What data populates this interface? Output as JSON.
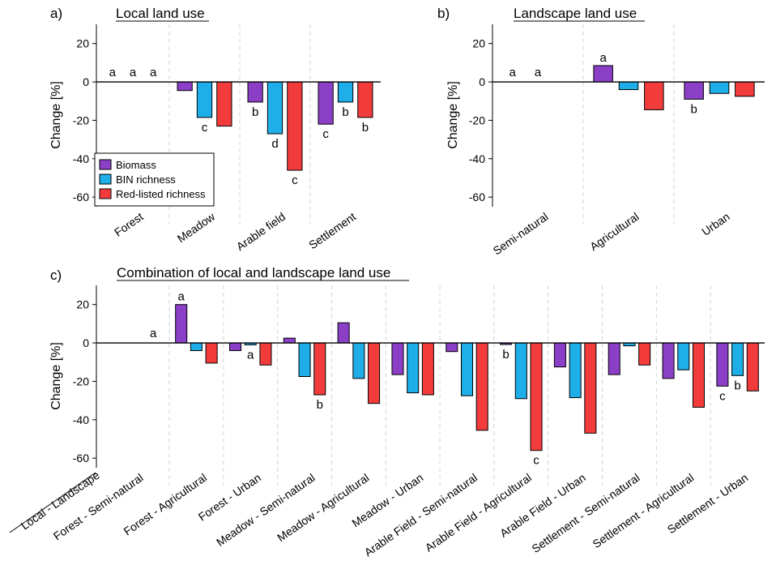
{
  "colors": {
    "biomass": "#8b3fc6",
    "bin": "#1eaee8",
    "red": "#f23c3c"
  },
  "legend": {
    "items": [
      "Biomass",
      "BIN richness",
      "Red-listed richness"
    ]
  },
  "bottom_label": "Local - Landscape",
  "chart_data": [
    {
      "panel": "a)",
      "title": "Local land use",
      "type": "bar",
      "ylabel": "Change [%]",
      "ylim": [
        -65,
        30
      ],
      "yticks": [
        20,
        0,
        -20,
        -40,
        -60
      ],
      "categories": [
        "Forest",
        "Meadow",
        "Arable field",
        "Settlement"
      ],
      "series": [
        {
          "name": "Biomass",
          "values": [
            0,
            -4.5,
            -10.5,
            -22
          ]
        },
        {
          "name": "BIN richness",
          "values": [
            0,
            -18.5,
            -27,
            -10.5
          ]
        },
        {
          "name": "Red-listed richness",
          "values": [
            0,
            -23,
            -46,
            -18.5
          ]
        }
      ],
      "letters": [
        [
          "a",
          "a",
          "a"
        ],
        [
          "",
          "c",
          ""
        ],
        [
          "b",
          "d",
          "c"
        ],
        [
          "c",
          "b",
          "b"
        ]
      ]
    },
    {
      "panel": "b)",
      "title": "Landscape land use",
      "type": "bar",
      "ylabel": "Change [%]",
      "ylim": [
        -65,
        30
      ],
      "yticks": [
        20,
        0,
        -20,
        -40,
        -60
      ],
      "categories": [
        "Semi-natural",
        "Agricultural",
        "Urban"
      ],
      "series": [
        {
          "name": "Biomass",
          "values": [
            0,
            8.5,
            -9
          ]
        },
        {
          "name": "BIN richness",
          "values": [
            0,
            -4,
            -6
          ]
        },
        {
          "name": "Red-listed richness",
          "values": [
            0,
            -14.5,
            -7.5
          ]
        }
      ],
      "letters": [
        [
          "a",
          "a",
          ""
        ],
        [
          "a",
          "",
          ""
        ],
        [
          "b",
          "",
          ""
        ]
      ]
    },
    {
      "panel": "c)",
      "title": "Combination of local and landscape land use",
      "type": "bar",
      "ylabel": "Change [%]",
      "ylim": [
        -65,
        30
      ],
      "yticks": [
        20,
        0,
        -20,
        -40,
        -60
      ],
      "categories": [
        "Forest - Semi-natural",
        "Forest - Agricultural",
        "Forest - Urban",
        "Meadow - Semi-natural",
        "Meadow - Agricultural",
        "Meadow - Urban",
        "Arable Field - Semi-natural",
        "Arable Field - Agricultural",
        "Arable Field - Urban",
        "Settlement - Semi-natural",
        "Settlement - Agricultural",
        "Settlement - Urban"
      ],
      "series": [
        {
          "name": "Biomass",
          "values": [
            0,
            20,
            -4,
            2.5,
            10.5,
            -16.5,
            -4.5,
            -0.8,
            -12.5,
            -16.5,
            -18.5,
            -22.5
          ]
        },
        {
          "name": "BIN richness",
          "values": [
            0,
            -4,
            -1,
            -17.5,
            -18.5,
            -26,
            -27.5,
            -29,
            -28.5,
            -1.5,
            -14,
            -17
          ]
        },
        {
          "name": "Red-listed richness",
          "values": [
            0,
            -10.5,
            -11.5,
            -27,
            -31.5,
            -27,
            -45.5,
            -56,
            -47,
            -11.5,
            -33.5,
            -25
          ]
        }
      ],
      "letters": [
        [
          "",
          "",
          "a"
        ],
        [
          "a",
          "",
          ""
        ],
        [
          "",
          "a",
          ""
        ],
        [
          "",
          "",
          "b"
        ],
        [
          "",
          "",
          ""
        ],
        [
          "",
          "",
          ""
        ],
        [
          "",
          "",
          ""
        ],
        [
          "b",
          "",
          "c"
        ],
        [
          "",
          "",
          ""
        ],
        [
          "",
          "",
          ""
        ],
        [
          "",
          "",
          ""
        ],
        [
          "c",
          "b",
          ""
        ]
      ]
    }
  ]
}
